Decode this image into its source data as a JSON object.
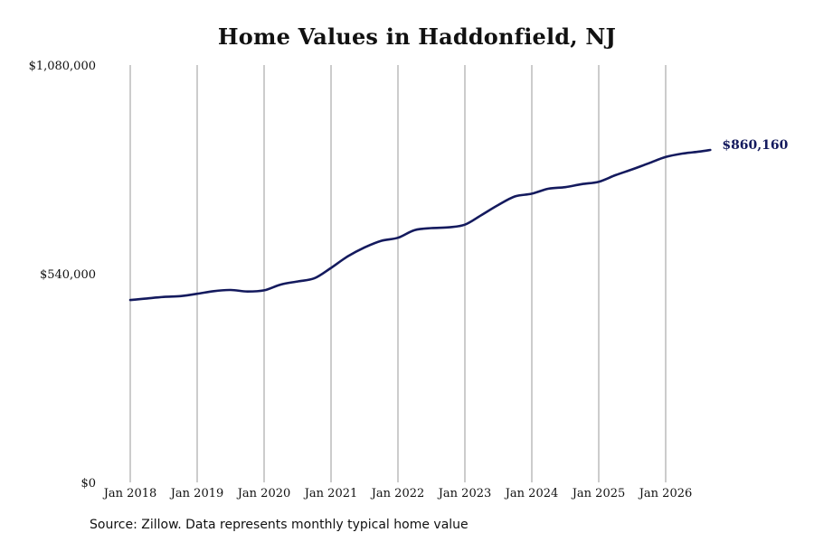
{
  "chart_data": {
    "type": "line",
    "title": "Home Values in Haddonfield, NJ",
    "xlabel": "",
    "ylabel": "",
    "ylim": [
      0,
      1080000
    ],
    "y_ticks": [
      {
        "value": 0,
        "label": "$0"
      },
      {
        "value": 540000,
        "label": "$540,000"
      },
      {
        "value": 1080000,
        "label": "$1,080,000"
      }
    ],
    "x_ticks": [
      "Jan 2018",
      "Jan 2019",
      "Jan 2020",
      "Jan 2021",
      "Jan 2022",
      "Jan 2023",
      "Jan 2024",
      "Jan 2025",
      "Jan 2026"
    ],
    "grid": "vertical lines at each January tick",
    "line_color": "#141a5e",
    "grid_color": "#9a9a9a",
    "series": [
      {
        "x": [
          "2018-01",
          "2018-04",
          "2018-07",
          "2018-10",
          "2019-01",
          "2019-04",
          "2019-07",
          "2019-10",
          "2020-01",
          "2020-04",
          "2020-07",
          "2020-10",
          "2021-01",
          "2021-04",
          "2021-07",
          "2021-10",
          "2022-01",
          "2022-04",
          "2022-07",
          "2022-10",
          "2023-01",
          "2023-04",
          "2023-07",
          "2023-10",
          "2024-01",
          "2024-04",
          "2024-07",
          "2024-10",
          "2025-01",
          "2025-04",
          "2025-07",
          "2025-10",
          "2026-01",
          "2026-04",
          "2026-07",
          "2026-09"
        ],
        "y": [
          472000,
          476000,
          480000,
          482000,
          488000,
          495000,
          498000,
          494000,
          497000,
          512000,
          520000,
          528000,
          555000,
          585000,
          608000,
          625000,
          633000,
          653000,
          658000,
          660000,
          667000,
          692000,
          718000,
          740000,
          747000,
          760000,
          764000,
          772000,
          778000,
          795000,
          810000,
          826000,
          842000,
          851000,
          856000,
          860160
        ]
      }
    ],
    "end_label": "$860,160",
    "source": "Source: Zillow. Data represents monthly typical home value"
  }
}
